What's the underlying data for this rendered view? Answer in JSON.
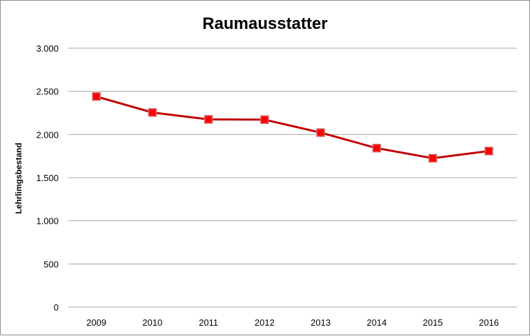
{
  "chart_data": {
    "type": "line",
    "title": "Raumausstatter",
    "xlabel": "",
    "ylabel": "Lehrlimgsbestand",
    "categories": [
      "2009",
      "2010",
      "2011",
      "2012",
      "2013",
      "2014",
      "2015",
      "2016"
    ],
    "series": [
      {
        "values": [
          2440,
          2255,
          2175,
          2172,
          2022,
          1842,
          1725,
          1808
        ]
      }
    ],
    "ylim": [
      0,
      3000
    ],
    "yticks": [
      0,
      500,
      1000,
      1500,
      2000,
      2500,
      3000
    ],
    "ytick_labels": [
      "0",
      "500",
      "1.000",
      "1.500",
      "2.000",
      "2.500",
      "3.000"
    ],
    "grid": true,
    "legend": "none",
    "colors": {
      "line": "#c00000",
      "marker": "#ff0000",
      "marker_edge": "#d46a6a",
      "grid": "#a6a6a6"
    }
  }
}
